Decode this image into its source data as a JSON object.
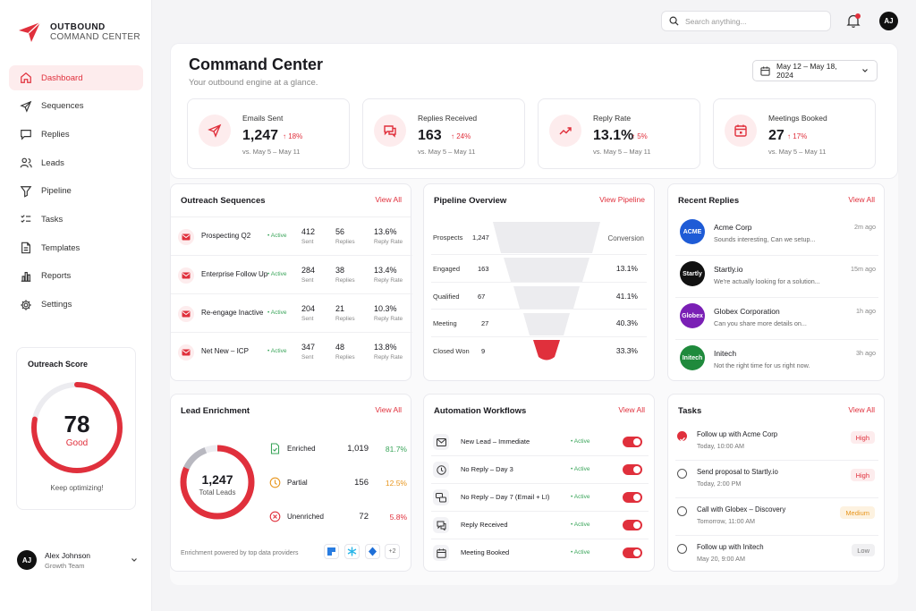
{
  "brand": {
    "line1": "OUTBOUND",
    "line2": "COMMAND CENTER",
    "accent": "#e0303c"
  },
  "nav": [
    {
      "label": "Dashboard",
      "icon": "home-icon",
      "active": true
    },
    {
      "label": "Sequences",
      "icon": "send-icon"
    },
    {
      "label": "Replies",
      "icon": "chat-icon"
    },
    {
      "label": "Leads",
      "icon": "users-icon"
    },
    {
      "label": "Pipeline",
      "icon": "filter-icon"
    },
    {
      "label": "Tasks",
      "icon": "checklist-icon"
    },
    {
      "label": "Templates",
      "icon": "file-icon"
    },
    {
      "label": "Reports",
      "icon": "bar-chart-icon"
    },
    {
      "label": "Settings",
      "icon": "gear-icon"
    }
  ],
  "score": {
    "title": "Outreach Score",
    "value": "78",
    "label": "Good",
    "fraction": 0.78,
    "note": "Keep optimizing!"
  },
  "user": {
    "initials": "AJ",
    "name": "Alex Johnson",
    "team": "Growth Team"
  },
  "topbar": {
    "search_placeholder": "Search anything...",
    "avatar": "AJ"
  },
  "header": {
    "title": "Command Center",
    "subtitle": "Your outbound engine at a glance.",
    "date_range": "May 12 – May 18, 2024"
  },
  "kpis": [
    {
      "label": "Emails Sent",
      "value": "1,247",
      "delta": "18%",
      "vs": "vs. May 5 – May 11",
      "icon": "send-icon"
    },
    {
      "label": "Replies Received",
      "value": "163",
      "delta": "24%",
      "vs": "vs. May 5 – May 11",
      "icon": "chat-icon"
    },
    {
      "label": "Reply Rate",
      "value": "13.1%",
      "delta": "5%",
      "vs": "vs. May 5 – May 11",
      "icon": "trend-up-icon"
    },
    {
      "label": "Meetings Booked",
      "value": "27",
      "delta": "17%",
      "vs": "vs. May 5 – May 11",
      "icon": "calendar-icon"
    }
  ],
  "sequences": {
    "title": "Outreach Sequences",
    "link": "View All",
    "sent_label": "Sent",
    "replies_label": "Replies",
    "rate_label": "Reply Rate",
    "rows": [
      {
        "name": "Prospecting Q2",
        "status": "Active",
        "sent": "412",
        "replies": "56",
        "rate": "13.6%"
      },
      {
        "name": "Enterprise Follow Up",
        "status": "Active",
        "sent": "284",
        "replies": "38",
        "rate": "13.4%"
      },
      {
        "name": "Re-engage Inactive",
        "status": "Active",
        "sent": "204",
        "replies": "21",
        "rate": "10.3%"
      },
      {
        "name": "Net New – ICP",
        "status": "Active",
        "sent": "347",
        "replies": "48",
        "rate": "13.8%"
      }
    ]
  },
  "pipeline": {
    "title": "Pipeline Overview",
    "link": "View Pipeline",
    "conversion_label": "Conversion",
    "stages": [
      {
        "name": "Prospects",
        "count": "1,247",
        "conversion": ""
      },
      {
        "name": "Engaged",
        "count": "163",
        "conversion": "13.1%"
      },
      {
        "name": "Qualified",
        "count": "67",
        "conversion": "41.1%"
      },
      {
        "name": "Meeting",
        "count": "27",
        "conversion": "40.3%"
      },
      {
        "name": "Closed Won",
        "count": "9",
        "conversion": "33.3%"
      }
    ]
  },
  "replies": {
    "title": "Recent Replies",
    "link": "View All",
    "items": [
      {
        "company": "Acme Corp",
        "logo": "ACME",
        "color": "#1e5bd6",
        "snippet": "Sounds interesting, Can we setup...",
        "time": "2m ago"
      },
      {
        "company": "Startly.io",
        "logo": "Startly",
        "color": "#111111",
        "snippet": "We're actually looking for a solution...",
        "time": "15m ago"
      },
      {
        "company": "Globex Corporation",
        "logo": "Globex",
        "color": "#7a1fb5",
        "snippet": "Can you share more details on...",
        "time": "1h ago"
      },
      {
        "company": "Initech",
        "logo": "Initech",
        "color": "#1f8a3c",
        "snippet": "Not the right time for us right now.",
        "time": "3h ago"
      }
    ]
  },
  "enrichment": {
    "title": "Lead Enrichment",
    "link": "View All",
    "total": "1,247",
    "total_label": "Total Leads",
    "rows": [
      {
        "label": "Enriched",
        "count": "1,019",
        "pct": "81.7%",
        "color": "#3aa55a"
      },
      {
        "label": "Partial",
        "count": "156",
        "pct": "12.5%",
        "color": "#e8961e"
      },
      {
        "label": "Unenriched",
        "count": "72",
        "pct": "5.8%",
        "color": "#e0303c"
      }
    ],
    "footer": "Enrichment powered by top data providers",
    "more": "+2"
  },
  "workflows": {
    "title": "Automation Workflows",
    "link": "View All",
    "rows": [
      {
        "name": "New Lead – Immediate",
        "status": "Active",
        "icon": "mail-icon"
      },
      {
        "name": "No Reply – Day 3",
        "status": "Active",
        "icon": "clock-icon"
      },
      {
        "name": "No Reply – Day 7 (Email + LI)",
        "status": "Active",
        "icon": "multi-channel-icon"
      },
      {
        "name": "Reply Received",
        "status": "Active",
        "icon": "chat-icon"
      },
      {
        "name": "Meeting Booked",
        "status": "Active",
        "icon": "calendar-icon"
      }
    ]
  },
  "tasks": {
    "title": "Tasks",
    "link": "View All",
    "items": [
      {
        "title": "Follow up with Acme Corp",
        "when": "Today, 10:00 AM",
        "priority": "High",
        "done": true
      },
      {
        "title": "Send proposal to Startly.io",
        "when": "Today, 2:00 PM",
        "priority": "High",
        "done": false
      },
      {
        "title": "Call with Globex – Discovery",
        "when": "Tomorrow, 11:00 AM",
        "priority": "Medium",
        "done": false
      },
      {
        "title": "Follow up with Initech",
        "when": "May 20, 9:00 AM",
        "priority": "Low",
        "done": false
      }
    ]
  }
}
